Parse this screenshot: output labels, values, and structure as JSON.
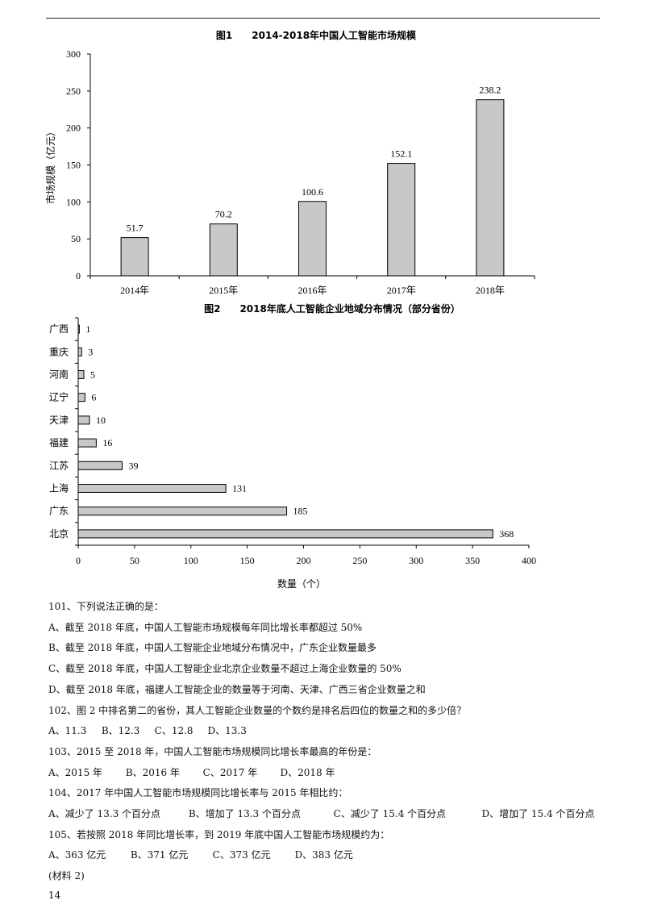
{
  "chart_data": [
    {
      "type": "bar",
      "title": "图1　　2014-2018年中国人工智能市场规模",
      "categories": [
        "2014年",
        "2015年",
        "2016年",
        "2017年",
        "2018年"
      ],
      "values": [
        51.7,
        70.2,
        100.6,
        152.1,
        238.2
      ],
      "value_labels": [
        "51.7",
        "70.2",
        "100.6",
        "152.1",
        "238.2"
      ],
      "xlabel": "",
      "ylabel": "市场规模（亿元）",
      "ylim": [
        0,
        300
      ],
      "yticks": [
        "0",
        "50",
        "100",
        "150",
        "200",
        "250",
        "300"
      ],
      "grid": false,
      "bar_color": "#c8c8c8"
    },
    {
      "type": "bar",
      "orientation": "horizontal",
      "title": "图2　　2018年底人工智能企业地域分布情况（部分省份）",
      "categories": [
        "广西",
        "重庆",
        "河南",
        "辽宁",
        "天津",
        "福建",
        "江苏",
        "上海",
        "广东",
        "北京"
      ],
      "values": [
        1,
        3,
        5,
        6,
        10,
        16,
        39,
        131,
        185,
        368
      ],
      "value_labels": [
        "1",
        "3",
        "5",
        "6",
        "10",
        "16",
        "39",
        "131",
        "185",
        "368"
      ],
      "xlabel": "数量（个）",
      "ylabel": "",
      "xlim": [
        0,
        400
      ],
      "xticks": [
        "0",
        "50",
        "100",
        "150",
        "200",
        "250",
        "300",
        "350",
        "400"
      ],
      "grid": false,
      "bar_color": "#c8c8c8"
    }
  ],
  "questions": {
    "q101": "101、下列说法正确的是：",
    "q101_a": "A、截至 2018 年底，中国人工智能市场规模每年同比增长率都超过 50%",
    "q101_b": "B、截至 2018 年底，中国人工智能企业地域分布情况中，广东企业数量最多",
    "q101_c": "C、截至 2018 年底，中国人工智能企业北京企业数量不超过上海企业数量的 50%",
    "q101_d": "D、截至 2018 年底，福建人工智能企业的数量等于河南、天津、广西三省企业数量之和",
    "q102": "102、图 2 中排名第二的省份，其人工智能企业数量的个数约是排名后四位的数量之和的多少倍？",
    "q102_opts": [
      "A、11.3",
      "B、12.3",
      "C、12.8",
      "D、13.3"
    ],
    "q103": "103、2015 至 2018 年，中国人工智能市场规模同比增长率最高的年份是：",
    "q103_opts": [
      "A、2015 年",
      "B、2016 年",
      "C、2017 年",
      "D、2018 年"
    ],
    "q104": "104、2017 年中国人工智能市场规模同比增长率与 2015 年相比约：",
    "q104_opts": [
      "A、减少了 13.3 个百分点",
      "B、增加了 13.3 个百分点",
      "C、减少了 15.4 个百分点",
      "D、增加了 15.4 个百分点"
    ],
    "q105": "105、若按照 2018 年同比增长率，到 2019 年底中国人工智能市场规模约为：",
    "q105_opts": [
      "A、363 亿元",
      "B、371 亿元",
      "C、373 亿元",
      "D、383 亿元"
    ],
    "material": "(材料 2)"
  },
  "page_number": "14"
}
